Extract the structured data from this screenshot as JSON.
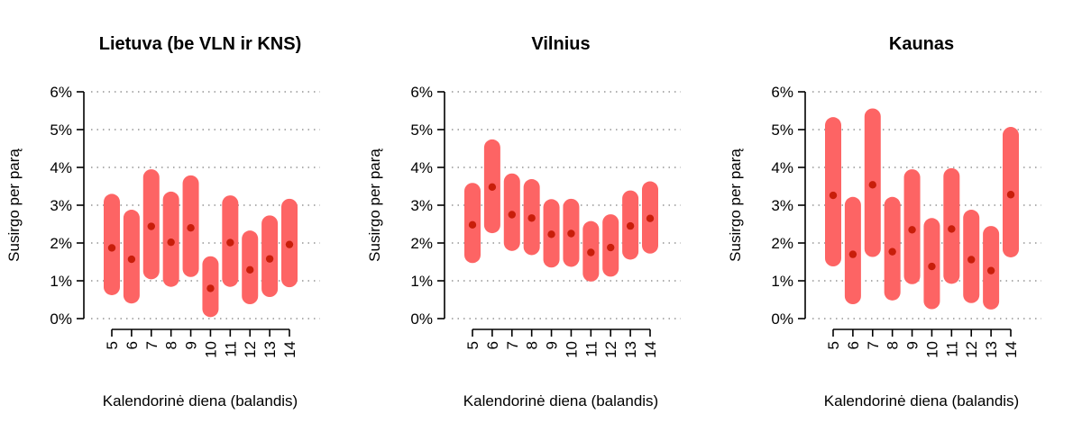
{
  "chart_data": [
    {
      "type": "interval",
      "title": "Lietuva (be VLN ir KNS)",
      "xlabel": "Kalendorinė diena (balandis)",
      "ylabel": "Susirgo per parą",
      "ylim": [
        0,
        6
      ],
      "yticks": [
        "0%",
        "1%",
        "2%",
        "3%",
        "4%",
        "5%",
        "6%"
      ],
      "categories": [
        "5",
        "6",
        "7",
        "8",
        "9",
        "10",
        "11",
        "12",
        "13",
        "14"
      ],
      "point": [
        1.87,
        1.57,
        2.44,
        2.02,
        2.4,
        0.8,
        2.01,
        1.29,
        1.58,
        1.96
      ],
      "lower": [
        0.62,
        0.4,
        1.04,
        0.84,
        1.1,
        0.04,
        0.84,
        0.38,
        0.57,
        0.83
      ],
      "upper": [
        3.3,
        2.88,
        3.95,
        3.36,
        3.79,
        1.65,
        3.26,
        2.33,
        2.73,
        3.17
      ],
      "grid": true
    },
    {
      "type": "interval",
      "title": "Vilnius",
      "xlabel": "Kalendorinė diena (balandis)",
      "ylabel": "Susirgo per parą",
      "ylim": [
        0,
        6
      ],
      "yticks": [
        "0%",
        "1%",
        "2%",
        "3%",
        "4%",
        "5%",
        "6%"
      ],
      "categories": [
        "5",
        "6",
        "7",
        "8",
        "9",
        "10",
        "11",
        "12",
        "13",
        "14"
      ],
      "point": [
        2.48,
        3.48,
        2.75,
        2.66,
        2.23,
        2.25,
        1.75,
        1.88,
        2.45,
        2.65
      ],
      "lower": [
        1.47,
        2.26,
        1.79,
        1.68,
        1.35,
        1.37,
        0.98,
        1.11,
        1.56,
        1.72
      ],
      "upper": [
        3.59,
        4.74,
        3.84,
        3.69,
        3.16,
        3.17,
        2.58,
        2.76,
        3.39,
        3.63
      ],
      "grid": true
    },
    {
      "type": "interval",
      "title": "Kaunas",
      "xlabel": "Kalendorinė diena (balandis)",
      "ylabel": "Susirgo per parą",
      "ylim": [
        0,
        6
      ],
      "yticks": [
        "0%",
        "1%",
        "2%",
        "3%",
        "4%",
        "5%",
        "6%"
      ],
      "categories": [
        "5",
        "6",
        "7",
        "8",
        "9",
        "10",
        "11",
        "12",
        "13",
        "14"
      ],
      "point": [
        3.26,
        1.7,
        3.54,
        1.77,
        2.35,
        1.38,
        2.37,
        1.56,
        1.27,
        3.28
      ],
      "lower": [
        1.38,
        0.38,
        1.63,
        0.48,
        0.91,
        0.25,
        0.92,
        0.41,
        0.24,
        1.62
      ],
      "upper": [
        5.33,
        3.22,
        5.56,
        3.22,
        3.95,
        2.66,
        3.98,
        2.88,
        2.45,
        5.07
      ],
      "grid": true
    }
  ],
  "colors": {
    "interval": "#fd6464",
    "point": "#c81e0a",
    "axis": "#000000",
    "grid": "#7f7f7f"
  }
}
